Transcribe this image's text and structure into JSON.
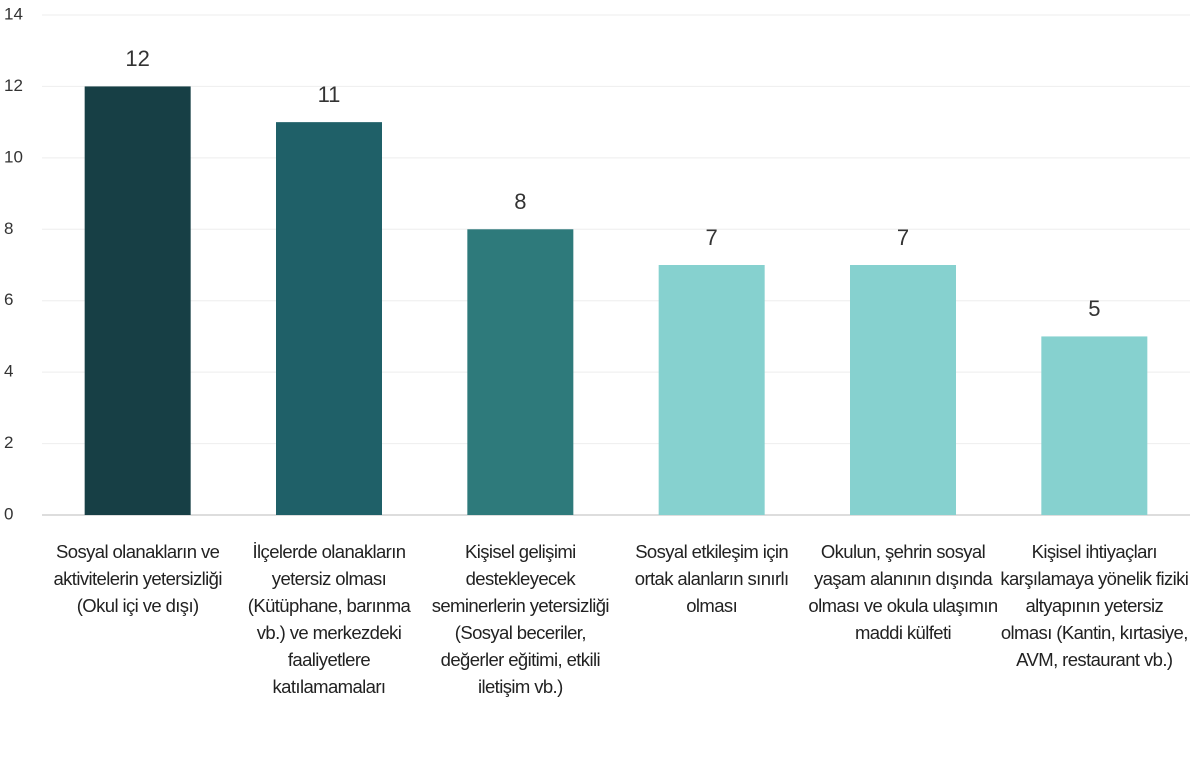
{
  "chart_data": {
    "type": "bar",
    "categories": [
      "Sosyal olanakların ve aktivitelerin yetersizliği (Okul içi ve dışı)",
      "İlçelerde olanakların yetersiz olması (Kütüphane, barınma vb.) ve merkezdeki faaliyetlere katılamamaları",
      "Kişisel gelişimi destekleyecek seminerlerin yetersizliği (Sosyal beceriler, değerler eğitimi, etkili iletişim vb.)",
      "Sosyal etkileşim için ortak alanların sınırlı olması",
      "Okulun, şehrin sosyal yaşam alanının dışında olması ve okula ulaşımın maddi külfeti",
      "Kişisel ihtiyaçları karşılamaya yönelik fiziki altyapının yetersiz olması (Kantin, kırtasiye, AVM, restaurant vb.)"
    ],
    "values": [
      12,
      11,
      8,
      7,
      7,
      5
    ],
    "colors": [
      "#173f45",
      "#1f6068",
      "#2e7a7b",
      "#86d1cf",
      "#86d1cf",
      "#86d1cf"
    ],
    "ylim": [
      0,
      14
    ],
    "yticks": [
      0,
      2,
      4,
      6,
      8,
      10,
      12,
      14
    ],
    "grid": true
  }
}
